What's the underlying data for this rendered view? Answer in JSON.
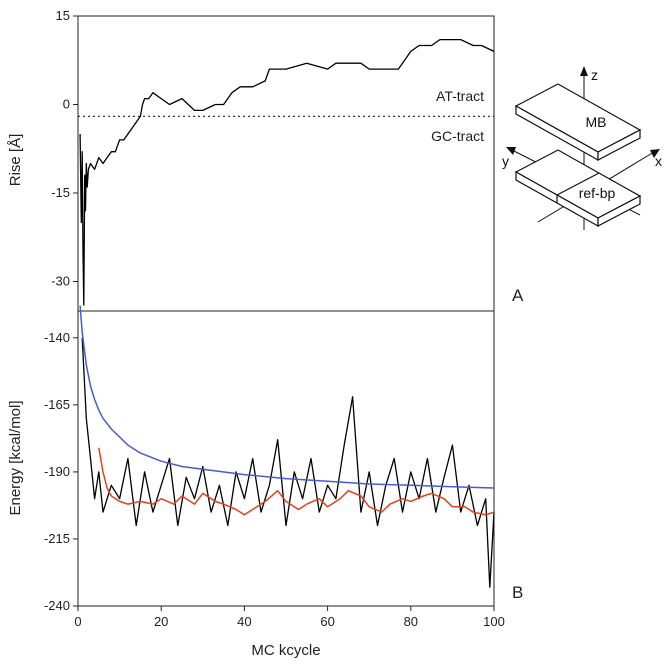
{
  "chart_data": [
    {
      "type": "line",
      "panel_label": "A",
      "ylabel": "Rise [Å]",
      "xlabel": "",
      "xlim": [
        0,
        100
      ],
      "ylim": [
        -35,
        15
      ],
      "yticks": [
        15,
        0,
        -15,
        -30
      ],
      "grid": false,
      "reference_line": {
        "y": -2,
        "style": "dotted"
      },
      "annotations": [
        "AT-tract",
        "GC-tract"
      ],
      "series": [
        {
          "color": "#000000",
          "x": [
            0.5,
            0.8,
            1.0,
            1.2,
            1.4,
            1.6,
            1.8,
            2.0,
            2.2,
            2.5,
            3,
            4,
            5,
            6,
            7,
            8,
            9,
            10,
            11,
            12,
            13,
            14,
            15,
            15.5,
            16,
            17,
            18,
            20,
            22,
            25,
            28,
            28.5,
            30,
            33,
            35,
            36,
            37,
            39,
            42,
            45,
            46,
            48,
            50,
            55,
            60,
            62,
            65,
            68,
            70,
            72,
            75,
            77,
            78,
            80,
            82,
            85,
            87,
            90,
            92,
            95,
            97,
            100
          ],
          "y": [
            -5,
            -20,
            -8,
            -25,
            -34,
            -12,
            -18,
            -10,
            -14,
            -11,
            -10,
            -11,
            -9,
            -10,
            -9,
            -8,
            -8,
            -6,
            -6,
            -5,
            -4,
            -3,
            -2,
            0,
            1,
            1,
            2,
            1,
            0,
            1,
            -1,
            -1,
            -1,
            0,
            0,
            1,
            2,
            3,
            3,
            4,
            6,
            6,
            6,
            7,
            6,
            7,
            7,
            7,
            6,
            6,
            6,
            6,
            7,
            9,
            10,
            10,
            11,
            11,
            11,
            10,
            10,
            9
          ]
        }
      ]
    },
    {
      "type": "line",
      "panel_label": "B",
      "ylabel": "Energy [kcal/mol]",
      "xlabel": "MC kcycle",
      "xlim": [
        0,
        100
      ],
      "ylim": [
        -240,
        -130
      ],
      "xticks": [
        0,
        20,
        40,
        60,
        80,
        100
      ],
      "yticks": [
        -140,
        -165,
        -190,
        -215,
        -240
      ],
      "grid": false,
      "series": [
        {
          "color": "#000000",
          "x": [
            1,
            2,
            3,
            4,
            5,
            6,
            8,
            10,
            12,
            14,
            16,
            18,
            20,
            22,
            24,
            26,
            28,
            30,
            32,
            34,
            36,
            38,
            40,
            42,
            44,
            46,
            48,
            50,
            52,
            54,
            56,
            58,
            60,
            62,
            64,
            66,
            68,
            70,
            72,
            74,
            76,
            78,
            80,
            82,
            84,
            86,
            88,
            90,
            92,
            94,
            96,
            98,
            99,
            100
          ],
          "y": [
            -140,
            -170,
            -185,
            -200,
            -190,
            -205,
            -195,
            -200,
            -185,
            -210,
            -190,
            -205,
            -195,
            -185,
            -210,
            -192,
            -200,
            -188,
            -205,
            -195,
            -210,
            -190,
            -200,
            -185,
            -205,
            -195,
            -178,
            -210,
            -190,
            -200,
            -185,
            -205,
            -195,
            -200,
            -180,
            -162,
            -205,
            -190,
            -210,
            -195,
            -185,
            -205,
            -190,
            -200,
            -185,
            -205,
            -192,
            -180,
            -205,
            -195,
            -210,
            -200,
            -233,
            -205
          ]
        },
        {
          "color": "#4a5bcc",
          "x": [
            0.5,
            1,
            2,
            3,
            4,
            5,
            6,
            8,
            10,
            12,
            15,
            20,
            25,
            30,
            40,
            50,
            60,
            70,
            80,
            90,
            100
          ],
          "y": [
            -128,
            -138,
            -150,
            -158,
            -163,
            -167,
            -170,
            -174,
            -177,
            -180,
            -183,
            -186,
            -188,
            -189,
            -191,
            -192.5,
            -193.5,
            -194.5,
            -195,
            -195.5,
            -196
          ]
        },
        {
          "color": "#e0421e",
          "x": [
            5,
            6,
            7,
            8,
            10,
            12,
            15,
            18,
            20,
            23,
            25,
            28,
            30,
            33,
            35,
            38,
            40,
            43,
            45,
            48,
            50,
            53,
            55,
            58,
            60,
            63,
            65,
            68,
            70,
            73,
            75,
            78,
            80,
            83,
            85,
            88,
            90,
            93,
            95,
            98,
            100
          ],
          "y": [
            -181,
            -190,
            -196,
            -199,
            -201,
            -202,
            -201,
            -202,
            -200,
            -202,
            -199,
            -202,
            -198,
            -201,
            -202,
            -204,
            -206,
            -203,
            -201,
            -197,
            -201,
            -204,
            -202,
            -200,
            -203,
            -200,
            -197,
            -199,
            -203,
            -205,
            -202,
            -200,
            -201,
            -199,
            -198,
            -200,
            -203,
            -203,
            -205,
            -206,
            -205
          ]
        }
      ]
    }
  ],
  "inset": {
    "upper_label": "MB",
    "lower_label": "ref-bp",
    "axis_x": "x",
    "axis_y": "y",
    "axis_z": "z"
  }
}
